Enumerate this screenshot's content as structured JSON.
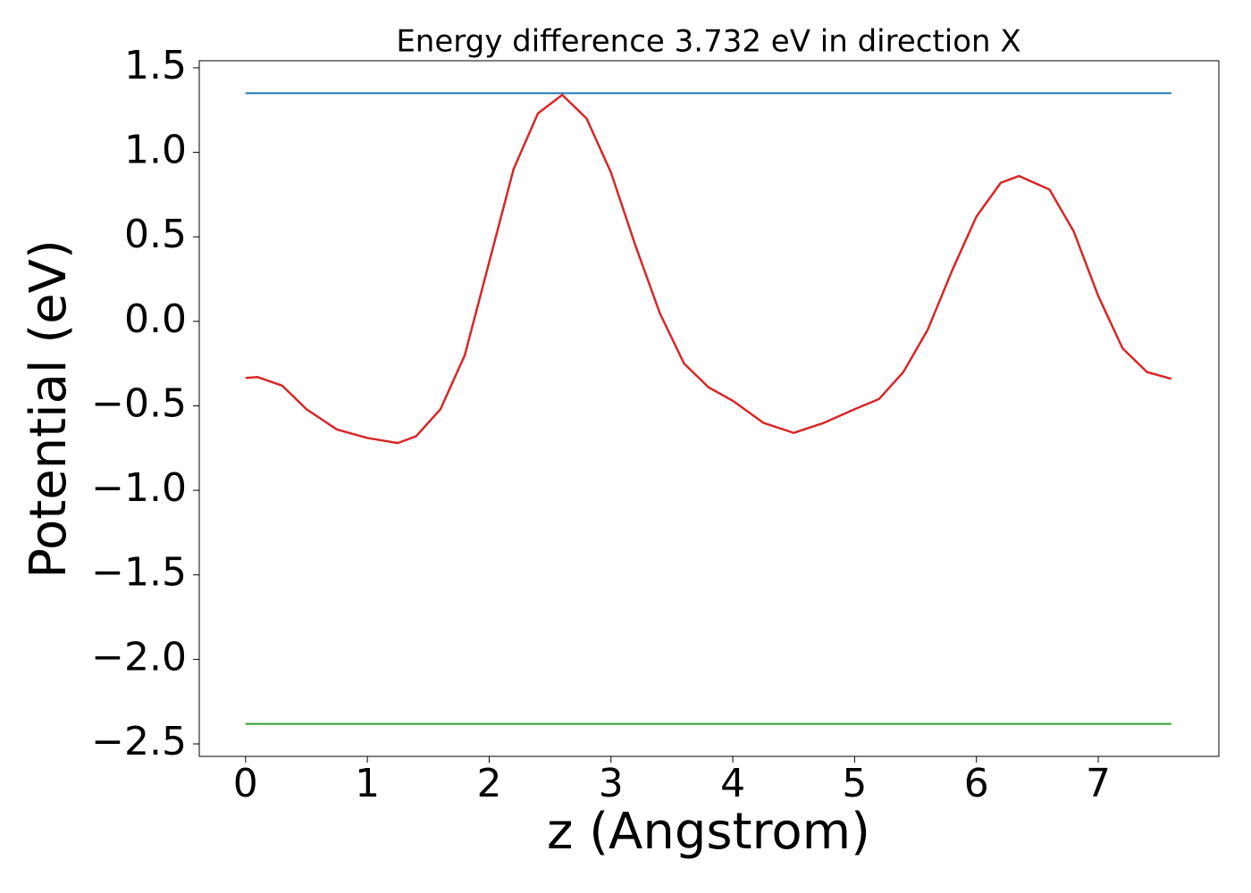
{
  "chart_data": {
    "type": "line",
    "title": "Energy difference 3.732 eV in direction X",
    "x_label": "z (Angstrom)",
    "y_label": "Potential (eV)",
    "xlim": [
      -0.38,
      7.99
    ],
    "ylim": [
      -2.574,
      1.542
    ],
    "xticks": [
      0,
      1,
      2,
      3,
      4,
      5,
      6,
      7
    ],
    "yticks": [
      1.5,
      {
        "value": 1,
        "label": "1.0"
      },
      0.5,
      {
        "value": 0,
        "label": "0.0"
      },
      {
        "value": -0.5,
        "label": "−0.5"
      },
      {
        "value": -1,
        "label": "−1.0"
      },
      {
        "value": -1.5,
        "label": "−1.5"
      },
      {
        "value": -2,
        "label": "−2.0"
      },
      {
        "value": -2.5,
        "label": "−2.5"
      }
    ],
    "grid": false,
    "series": [
      {
        "color": "#1f77b4",
        "x": [
          0,
          7.6
        ],
        "values": [
          1.35,
          1.35
        ]
      },
      {
        "color": "#2ca02c",
        "x": [
          0,
          7.6
        ],
        "values": [
          -2.382,
          -2.382
        ]
      },
      {
        "color": "#d62728",
        "x": [
          0,
          0.1,
          0.3,
          0.5,
          0.75,
          1.0,
          1.25,
          1.4,
          1.6,
          1.8,
          2.0,
          2.2,
          2.4,
          2.6,
          2.8,
          3.0,
          3.2,
          3.4,
          3.6,
          3.8,
          4.0,
          4.25,
          4.5,
          4.75,
          5.0,
          5.2,
          5.4,
          5.6,
          5.8,
          6.0,
          6.2,
          6.35,
          6.6,
          6.8,
          7.0,
          7.2,
          7.4,
          7.6
        ],
        "values": [
          -0.335,
          -0.33,
          -0.38,
          -0.52,
          -0.64,
          -0.69,
          -0.72,
          -0.68,
          -0.52,
          -0.2,
          0.35,
          0.9,
          1.23,
          1.34,
          1.2,
          0.88,
          0.45,
          0.05,
          -0.25,
          -0.39,
          -0.47,
          -0.6,
          -0.66,
          -0.6,
          -0.52,
          -0.46,
          -0.3,
          -0.05,
          0.3,
          0.62,
          0.82,
          0.86,
          0.78,
          0.53,
          0.15,
          -0.16,
          -0.3,
          -0.34
        ]
      }
    ]
  }
}
